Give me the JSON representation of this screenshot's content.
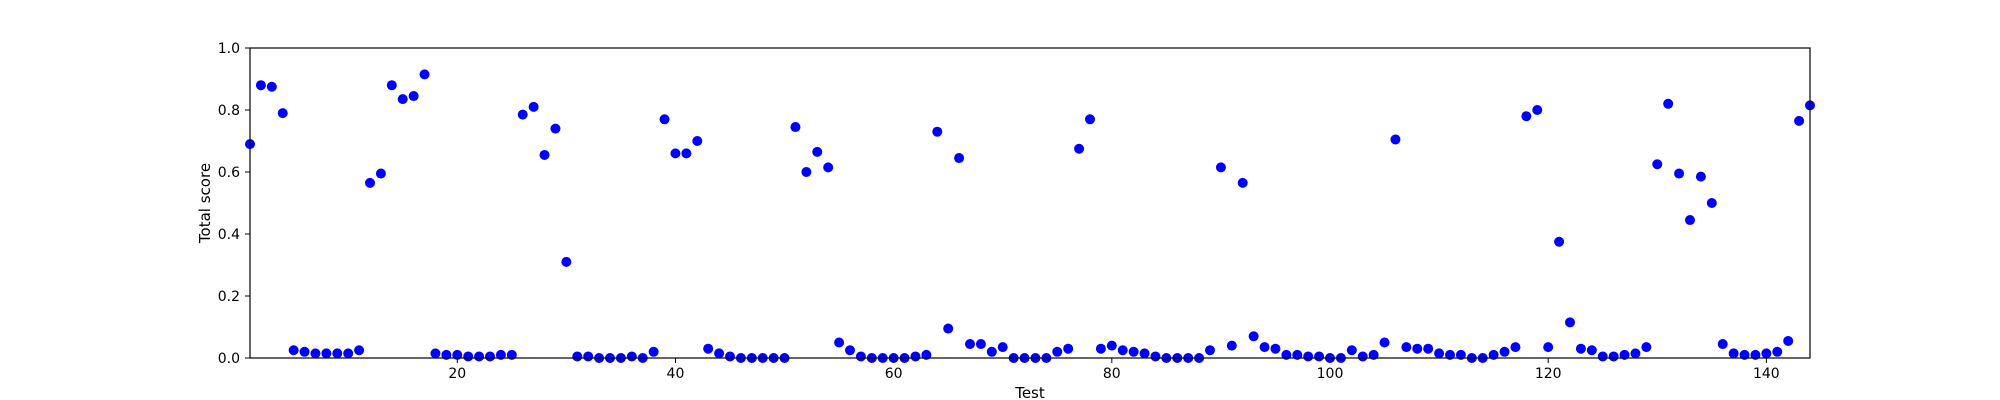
{
  "chart_data": {
    "type": "scatter",
    "title": "",
    "xlabel": "Test",
    "ylabel": "Total score",
    "xlim": [
      1,
      144
    ],
    "ylim": [
      0.0,
      1.0
    ],
    "x_ticks": [
      20,
      40,
      60,
      80,
      100,
      120,
      140
    ],
    "y_ticks": [
      "0.0",
      "0.2",
      "0.4",
      "0.6",
      "0.8",
      "1.0"
    ],
    "grid": false,
    "legend": "none",
    "marker_color": "#0000ff",
    "series": [
      {
        "x": [
          1,
          2,
          3,
          4,
          5,
          6,
          7,
          8,
          9,
          10,
          11,
          12,
          13,
          14,
          15,
          16,
          17,
          18,
          19,
          20,
          21,
          22,
          23,
          24,
          25,
          26,
          27,
          28,
          29,
          30,
          31,
          32,
          33,
          34,
          35,
          36,
          37,
          38,
          39,
          40,
          41,
          42,
          43,
          44,
          45,
          46,
          47,
          48,
          49,
          50,
          51,
          52,
          53,
          54,
          55,
          56,
          57,
          58,
          59,
          60,
          61,
          62,
          63,
          64,
          65,
          66,
          67,
          68,
          69,
          70,
          71,
          72,
          73,
          74,
          75,
          76,
          77,
          78,
          79,
          80,
          81,
          82,
          83,
          84,
          85,
          86,
          87,
          88,
          89,
          90,
          91,
          92,
          93,
          94,
          95,
          96,
          97,
          98,
          99,
          100,
          101,
          102,
          103,
          104,
          105,
          106,
          107,
          108,
          109,
          110,
          111,
          112,
          113,
          114,
          115,
          116,
          117,
          118,
          119,
          120,
          121,
          122,
          123,
          124,
          125,
          126,
          127,
          128,
          129,
          130,
          131,
          132,
          133,
          134,
          135,
          136,
          137,
          138,
          139,
          140,
          141,
          142,
          143,
          144
        ],
        "y": [
          0.69,
          0.88,
          0.875,
          0.79,
          0.025,
          0.02,
          0.015,
          0.015,
          0.015,
          0.015,
          0.025,
          0.565,
          0.595,
          0.88,
          0.835,
          0.845,
          0.915,
          0.015,
          0.01,
          0.01,
          0.005,
          0.005,
          0.005,
          0.01,
          0.01,
          0.785,
          0.81,
          0.655,
          0.74,
          0.31,
          0.005,
          0.005,
          0.0,
          0.0,
          0.0,
          0.005,
          0.0,
          0.02,
          0.77,
          0.66,
          0.66,
          0.7,
          0.03,
          0.015,
          0.005,
          0.0,
          0.0,
          0.0,
          0.0,
          0.0,
          0.745,
          0.6,
          0.665,
          0.615,
          0.05,
          0.025,
          0.005,
          0.0,
          0.0,
          0.0,
          0.0,
          0.005,
          0.01,
          0.73,
          0.095,
          0.645,
          0.045,
          0.045,
          0.02,
          0.035,
          0.0,
          0.0,
          0.0,
          0.0,
          0.02,
          0.03,
          0.675,
          0.77,
          0.03,
          0.04,
          0.025,
          0.02,
          0.015,
          0.005,
          0.0,
          0.0,
          0.0,
          0.0,
          0.025,
          0.615,
          0.04,
          0.565,
          0.07,
          0.035,
          0.03,
          0.01,
          0.01,
          0.005,
          0.005,
          0.0,
          0.0,
          0.025,
          0.005,
          0.01,
          0.05,
          0.705,
          0.035,
          0.03,
          0.03,
          0.015,
          0.01,
          0.01,
          0.0,
          0.0,
          0.01,
          0.02,
          0.035,
          0.78,
          0.8,
          0.035,
          0.375,
          0.115,
          0.03,
          0.025,
          0.005,
          0.005,
          0.01,
          0.015,
          0.035,
          0.625,
          0.82,
          0.595,
          0.445,
          0.585,
          0.5,
          0.045,
          0.015,
          0.01,
          0.01,
          0.015,
          0.02,
          0.055,
          0.765,
          0.815
        ]
      }
    ]
  }
}
